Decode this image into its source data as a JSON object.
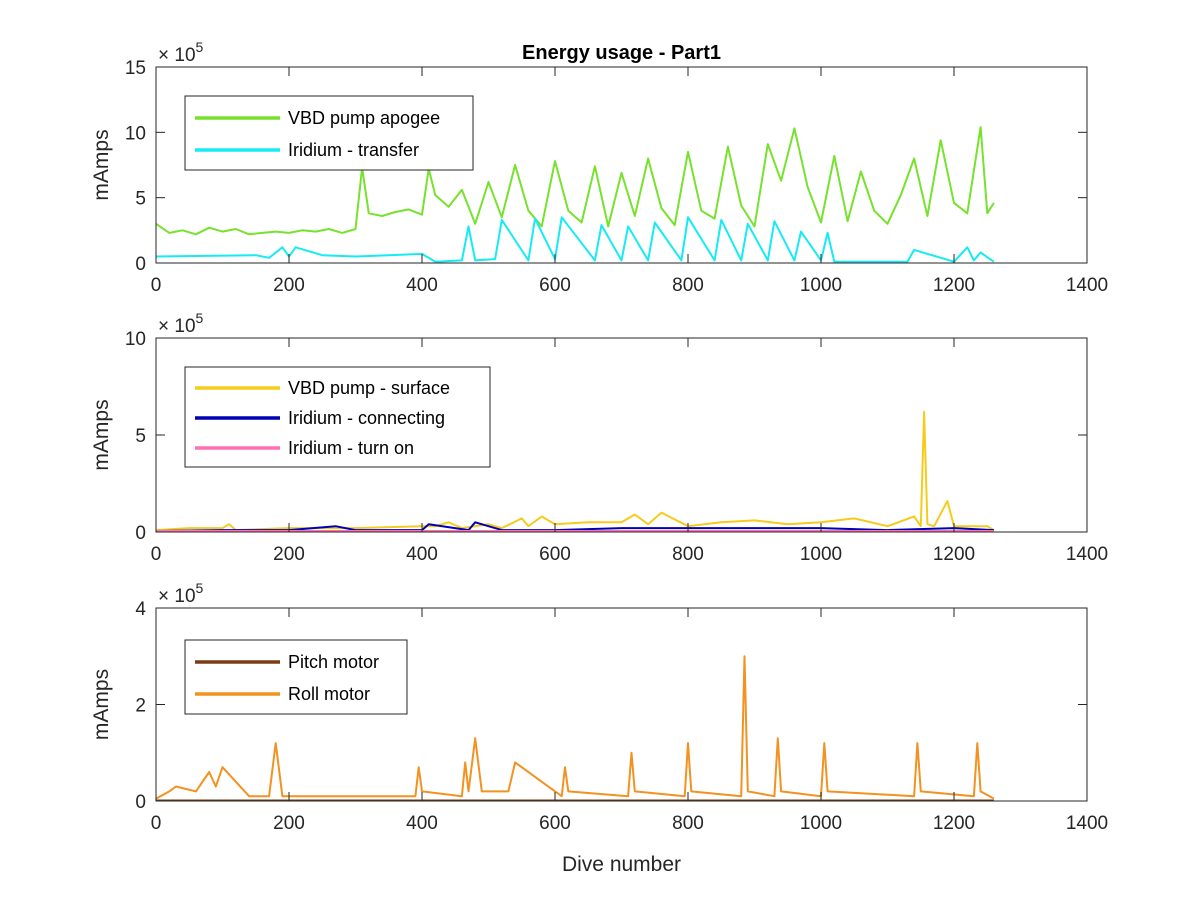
{
  "figure_title": "Energy usage - Part1",
  "chart_data": [
    {
      "type": "line",
      "title": "Energy usage - Part1",
      "xlabel": "",
      "ylabel": "mAmps",
      "multiplier": "× 10⁵",
      "xlim": [
        0,
        1400
      ],
      "ylim": [
        0,
        15
      ],
      "xticks": [
        "0",
        "200",
        "400",
        "600",
        "800",
        "1000",
        "1200",
        "1400"
      ],
      "yticks": [
        "0",
        "5",
        "10",
        "15"
      ],
      "legend_position": "top-left",
      "series": [
        {
          "name": "VBD pump apogee",
          "color": "#77e22d",
          "x": [
            0,
            20,
            40,
            60,
            80,
            100,
            120,
            140,
            160,
            180,
            200,
            220,
            240,
            260,
            280,
            300,
            310,
            320,
            340,
            360,
            380,
            400,
            410,
            420,
            440,
            460,
            480,
            500,
            520,
            540,
            560,
            580,
            600,
            620,
            640,
            660,
            680,
            700,
            720,
            740,
            760,
            780,
            800,
            820,
            840,
            860,
            880,
            900,
            920,
            940,
            960,
            980,
            1000,
            1020,
            1040,
            1060,
            1080,
            1100,
            1120,
            1140,
            1160,
            1180,
            1200,
            1220,
            1240,
            1250,
            1260
          ],
          "y": [
            3.0,
            2.3,
            2.5,
            2.2,
            2.7,
            2.4,
            2.6,
            2.2,
            2.3,
            2.4,
            2.3,
            2.5,
            2.4,
            2.6,
            2.3,
            2.6,
            7.3,
            3.8,
            3.6,
            3.9,
            4.1,
            3.7,
            7.2,
            5.2,
            4.3,
            5.6,
            3.0,
            6.2,
            3.5,
            7.5,
            4.0,
            2.8,
            7.8,
            4.0,
            3.1,
            7.4,
            2.8,
            6.9,
            3.6,
            8.0,
            4.2,
            2.9,
            8.5,
            4.0,
            3.4,
            8.9,
            4.4,
            2.8,
            9.1,
            6.3,
            10.3,
            5.8,
            3.1,
            8.2,
            3.2,
            7.0,
            4.0,
            3.0,
            5.2,
            8.0,
            3.6,
            9.4,
            4.6,
            3.8,
            10.4,
            3.8,
            4.6
          ]
        },
        {
          "name": "Iridium - transfer",
          "color": "#16ebf3",
          "x": [
            0,
            150,
            170,
            190,
            200,
            210,
            250,
            300,
            350,
            400,
            420,
            460,
            470,
            480,
            510,
            520,
            560,
            570,
            600,
            610,
            660,
            670,
            700,
            710,
            740,
            750,
            790,
            800,
            840,
            850,
            880,
            890,
            920,
            930,
            960,
            970,
            1000,
            1010,
            1020,
            1100,
            1130,
            1140,
            1200,
            1220,
            1230,
            1240,
            1260
          ],
          "y": [
            0.5,
            0.6,
            0.4,
            1.2,
            0.5,
            1.2,
            0.6,
            0.5,
            0.6,
            0.7,
            0.1,
            0.2,
            2.8,
            0.2,
            0.3,
            3.3,
            0.2,
            3.4,
            0.3,
            3.5,
            0.2,
            2.9,
            0.2,
            2.8,
            0.2,
            3.1,
            0.2,
            3.5,
            0.2,
            3.3,
            0.2,
            3.0,
            0.2,
            3.2,
            0.2,
            2.4,
            0.2,
            2.3,
            0.1,
            0.1,
            0.1,
            1.0,
            0.1,
            1.2,
            0.2,
            0.8,
            0.1
          ]
        }
      ]
    },
    {
      "type": "line",
      "title": "",
      "xlabel": "",
      "ylabel": "mAmps",
      "multiplier": "× 10⁵",
      "xlim": [
        0,
        1400
      ],
      "ylim": [
        0,
        10
      ],
      "xticks": [
        "0",
        "200",
        "400",
        "600",
        "800",
        "1000",
        "1200",
        "1400"
      ],
      "yticks": [
        "0",
        "5",
        "10"
      ],
      "legend_position": "top-left",
      "series": [
        {
          "name": "VBD pump - surface",
          "color": "#f5cc1c",
          "x": [
            0,
            50,
            100,
            110,
            120,
            200,
            300,
            400,
            420,
            440,
            460,
            500,
            520,
            550,
            560,
            580,
            600,
            650,
            700,
            720,
            740,
            760,
            800,
            850,
            900,
            950,
            1000,
            1050,
            1100,
            1140,
            1150,
            1155,
            1160,
            1170,
            1190,
            1200,
            1250,
            1260
          ],
          "y": [
            0.1,
            0.2,
            0.2,
            0.4,
            0.1,
            0.2,
            0.2,
            0.3,
            0.3,
            0.5,
            0.2,
            0.4,
            0.2,
            0.7,
            0.3,
            0.8,
            0.4,
            0.5,
            0.5,
            0.9,
            0.4,
            1.0,
            0.3,
            0.5,
            0.6,
            0.4,
            0.5,
            0.7,
            0.3,
            0.8,
            0.3,
            6.2,
            0.4,
            0.3,
            1.6,
            0.3,
            0.3,
            0.1
          ]
        },
        {
          "name": "Iridium - connecting",
          "color": "#0000b4",
          "x": [
            0,
            100,
            200,
            270,
            300,
            400,
            410,
            470,
            480,
            520,
            600,
            700,
            800,
            900,
            1000,
            1100,
            1200,
            1260
          ],
          "y": [
            0.05,
            0.1,
            0.1,
            0.3,
            0.1,
            0.1,
            0.4,
            0.1,
            0.5,
            0.1,
            0.1,
            0.2,
            0.2,
            0.2,
            0.2,
            0.1,
            0.2,
            0.1
          ]
        },
        {
          "name": "Iridium - turn on",
          "color": "#ff6fb4",
          "x": [
            0,
            200,
            400,
            600,
            800,
            1000,
            1200,
            1260
          ],
          "y": [
            0.05,
            0.05,
            0.05,
            0.05,
            0.05,
            0.05,
            0.05,
            0.05
          ]
        }
      ]
    },
    {
      "type": "line",
      "title": "",
      "xlabel": "Dive number",
      "ylabel": "mAmps",
      "multiplier": "× 10⁵",
      "xlim": [
        0,
        1400
      ],
      "ylim": [
        0,
        4
      ],
      "xticks": [
        "0",
        "200",
        "400",
        "600",
        "800",
        "1000",
        "1200",
        "1400"
      ],
      "yticks": [
        "0",
        "2",
        "4"
      ],
      "legend_position": "top-left",
      "series": [
        {
          "name": "Pitch motor",
          "color": "#7a3c12",
          "x": [
            0,
            200,
            400,
            600,
            800,
            1000,
            1200,
            1260
          ],
          "y": [
            0.01,
            0.01,
            0.01,
            0.01,
            0.01,
            0.01,
            0.01,
            0.01
          ]
        },
        {
          "name": "Roll motor",
          "color": "#f39220",
          "x": [
            0,
            20,
            30,
            60,
            80,
            90,
            100,
            140,
            170,
            180,
            190,
            300,
            390,
            395,
            400,
            460,
            465,
            470,
            480,
            490,
            530,
            540,
            610,
            615,
            620,
            710,
            715,
            720,
            795,
            800,
            805,
            880,
            885,
            890,
            930,
            935,
            940,
            1000,
            1005,
            1010,
            1140,
            1145,
            1150,
            1230,
            1235,
            1240,
            1260
          ],
          "y": [
            0.05,
            0.2,
            0.3,
            0.2,
            0.6,
            0.3,
            0.7,
            0.1,
            0.1,
            1.2,
            0.1,
            0.1,
            0.1,
            0.7,
            0.2,
            0.1,
            0.8,
            0.2,
            1.3,
            0.2,
            0.2,
            0.8,
            0.1,
            0.7,
            0.2,
            0.1,
            1.0,
            0.2,
            0.1,
            1.2,
            0.2,
            0.1,
            3.0,
            0.2,
            0.1,
            1.3,
            0.2,
            0.1,
            1.2,
            0.2,
            0.1,
            1.2,
            0.2,
            0.1,
            1.2,
            0.2,
            0.05
          ]
        }
      ]
    }
  ]
}
